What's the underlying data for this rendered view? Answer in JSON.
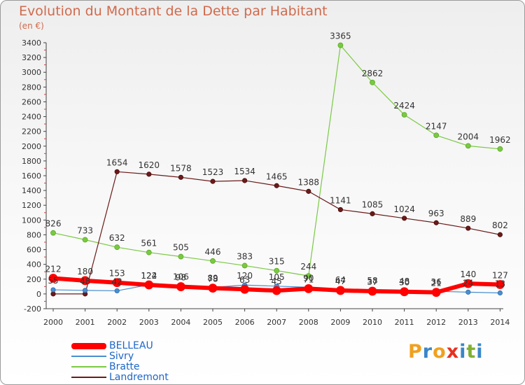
{
  "header": {
    "title": "Evolution du Montant de la Dette par Habitant",
    "unit": "(en €)"
  },
  "logo": {
    "text": "Proxiti",
    "colors": [
      "#f0a020",
      "#3a86c8",
      "#f0a020",
      "#e83020",
      "#3a86c8",
      "#80b030",
      "#3a86c8"
    ]
  },
  "chart_data": {
    "type": "line",
    "title": "Evolution du Montant de la Dette par Habitant",
    "ylabel": "(en €)",
    "xlabel": "",
    "x": [
      2000,
      2001,
      2002,
      2003,
      2004,
      2005,
      2006,
      2007,
      2008,
      2009,
      2010,
      2011,
      2012,
      2013,
      2014
    ],
    "ylim": [
      -200,
      3400
    ],
    "yticks": [
      -200,
      0,
      200,
      400,
      600,
      800,
      1000,
      1200,
      1400,
      1600,
      1800,
      2000,
      2200,
      2400,
      2600,
      2800,
      3000,
      3200,
      3400
    ],
    "grid": false,
    "legend_position": "bottom-left",
    "series": [
      {
        "name": "BELLEAU",
        "color": "#ff0000",
        "values": [
          212,
          180,
          153,
          122,
          98,
          78,
          63,
          45,
          71,
          47,
          37,
          30,
          21,
          140,
          127
        ],
        "labels": [
          "212",
          "180",
          "153",
          "122",
          "98",
          "78",
          "63",
          "45",
          "71",
          "47",
          "37",
          "30",
          "21",
          "140",
          "127"
        ]
      },
      {
        "name": "Sivry",
        "color": "#4a8ed0",
        "values": [
          55,
          48,
          42,
          124,
          106,
          89,
          120,
          105,
          90,
          64,
          58,
          48,
          36,
          24,
          13
        ],
        "labels": [
          "55",
          "48",
          "42",
          "124",
          "106",
          "89",
          "120",
          "105",
          "90",
          "64",
          "58",
          "48",
          "36",
          "24",
          "13"
        ]
      },
      {
        "name": "Bratte",
        "color": "#7ac943",
        "values": [
          826,
          733,
          632,
          561,
          505,
          446,
          383,
          315,
          244,
          3365,
          2862,
          2424,
          2147,
          2004,
          1962
        ],
        "labels": [
          "826",
          "733",
          "632",
          "561",
          "505",
          "446",
          "383",
          "315",
          "244",
          "3365",
          "2862",
          "2424",
          "2147",
          "2004",
          "1962"
        ]
      },
      {
        "name": "Landremont",
        "color": "#6b1a1a",
        "values": [
          0,
          0,
          1654,
          1620,
          1578,
          1523,
          1534,
          1465,
          1388,
          1141,
          1085,
          1024,
          963,
          889,
          802
        ],
        "labels": [
          "0",
          "0",
          "1654",
          "1620",
          "1578",
          "1523",
          "1534",
          "1465",
          "1388",
          "1141",
          "1085",
          "1024",
          "963",
          "889",
          "802"
        ]
      }
    ]
  }
}
